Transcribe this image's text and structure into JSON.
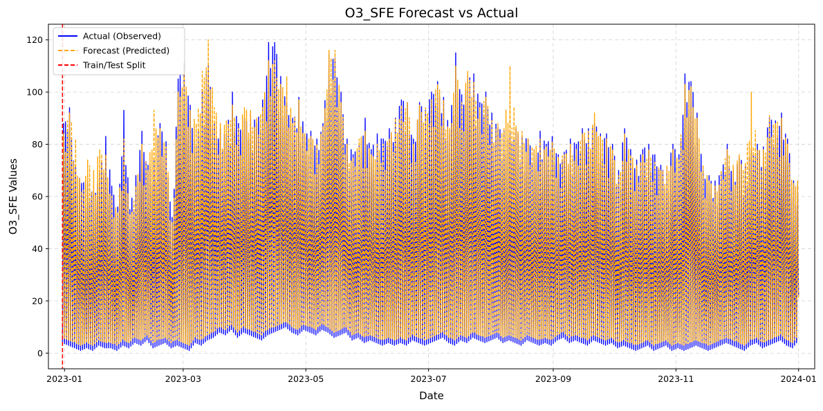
{
  "chart_data": {
    "type": "line",
    "title": "O3_SFE Forecast vs Actual",
    "xlabel": "Date",
    "ylabel": "O3_SFE Values",
    "xlim": [
      "2022-12-24",
      "2024-01-09"
    ],
    "ylim": [
      -6,
      126
    ],
    "x_ticks": [
      "2023-01",
      "2023-03",
      "2023-05",
      "2023-07",
      "2023-09",
      "2023-11",
      "2024-01"
    ],
    "y_ticks": [
      0,
      20,
      40,
      60,
      80,
      100,
      120
    ],
    "grid": true,
    "legend": {
      "placement": "top-left",
      "entries": [
        "Actual (Observed)",
        "Forecast (Predicted)",
        "Train/Test Split"
      ]
    },
    "split_date": "2022-12-31",
    "series": [
      {
        "name": "Actual (Observed)",
        "color": "#0000ff",
        "style": "solid",
        "x": [
          "2022-12-31",
          "2023-01-03",
          "2023-01-06",
          "2023-01-09",
          "2023-01-12",
          "2023-01-15",
          "2023-01-18",
          "2023-01-21",
          "2023-01-24",
          "2023-01-27",
          "2023-01-30",
          "2023-02-02",
          "2023-02-05",
          "2023-02-08",
          "2023-02-11",
          "2023-02-14",
          "2023-02-17",
          "2023-02-20",
          "2023-02-23",
          "2023-02-26",
          "2023-03-01",
          "2023-03-04",
          "2023-03-07",
          "2023-03-10",
          "2023-03-13",
          "2023-03-16",
          "2023-03-19",
          "2023-03-22",
          "2023-03-25",
          "2023-03-28",
          "2023-03-31",
          "2023-04-03",
          "2023-04-06",
          "2023-04-09",
          "2023-04-12",
          "2023-04-15",
          "2023-04-18",
          "2023-04-21",
          "2023-04-24",
          "2023-04-27",
          "2023-04-30",
          "2023-05-03",
          "2023-05-06",
          "2023-05-09",
          "2023-05-12",
          "2023-05-15",
          "2023-05-18",
          "2023-05-21",
          "2023-05-24",
          "2023-05-27",
          "2023-05-30",
          "2023-06-02",
          "2023-06-05",
          "2023-06-08",
          "2023-06-11",
          "2023-06-14",
          "2023-06-17",
          "2023-06-20",
          "2023-06-23",
          "2023-06-26",
          "2023-06-29",
          "2023-07-02",
          "2023-07-05",
          "2023-07-08",
          "2023-07-11",
          "2023-07-14",
          "2023-07-17",
          "2023-07-20",
          "2023-07-23",
          "2023-07-26",
          "2023-07-29",
          "2023-08-01",
          "2023-08-04",
          "2023-08-07",
          "2023-08-10",
          "2023-08-13",
          "2023-08-16",
          "2023-08-19",
          "2023-08-22",
          "2023-08-25",
          "2023-08-28",
          "2023-08-31",
          "2023-09-03",
          "2023-09-06",
          "2023-09-09",
          "2023-09-12",
          "2023-09-15",
          "2023-09-18",
          "2023-09-21",
          "2023-09-24",
          "2023-09-27",
          "2023-09-30",
          "2023-10-03",
          "2023-10-06",
          "2023-10-09",
          "2023-10-12",
          "2023-10-15",
          "2023-10-18",
          "2023-10-21",
          "2023-10-24",
          "2023-10-27",
          "2023-10-30",
          "2023-11-02",
          "2023-11-05",
          "2023-11-08",
          "2023-11-11",
          "2023-11-14",
          "2023-11-17",
          "2023-11-20",
          "2023-11-23",
          "2023-11-26",
          "2023-11-29",
          "2023-12-02",
          "2023-12-05",
          "2023-12-08",
          "2023-12-11",
          "2023-12-14",
          "2023-12-17",
          "2023-12-20",
          "2023-12-23",
          "2023-12-26",
          "2023-12-29",
          "2023-12-31"
        ],
        "low": [
          4,
          3,
          2,
          1,
          2,
          1,
          3,
          2,
          2,
          1,
          3,
          2,
          4,
          3,
          5,
          2,
          3,
          4,
          2,
          3,
          2,
          1,
          4,
          3,
          5,
          6,
          8,
          7,
          9,
          6,
          8,
          7,
          6,
          5,
          7,
          8,
          9,
          10,
          8,
          7,
          9,
          8,
          7,
          9,
          8,
          6,
          7,
          8,
          5,
          6,
          4,
          5,
          4,
          3,
          4,
          3,
          4,
          3,
          5,
          4,
          3,
          4,
          5,
          6,
          4,
          3,
          5,
          4,
          6,
          5,
          4,
          5,
          6,
          4,
          5,
          4,
          3,
          5,
          4,
          3,
          4,
          3,
          5,
          6,
          4,
          5,
          4,
          3,
          5,
          4,
          3,
          4,
          2,
          3,
          2,
          1,
          2,
          3,
          1,
          2,
          3,
          1,
          2,
          1,
          2,
          3,
          2,
          1,
          2,
          3,
          4,
          3,
          2,
          1,
          3,
          4,
          2,
          3,
          4,
          5,
          3,
          2,
          4
        ],
        "high": [
          88,
          94,
          72,
          65,
          66,
          62,
          70,
          83,
          64,
          56,
          93,
          55,
          68,
          85,
          72,
          74,
          88,
          81,
          52,
          105,
          111,
          95,
          80,
          101,
          110,
          88,
          86,
          84,
          100,
          88,
          90,
          92,
          88,
          97,
          119,
          119,
          106,
          96,
          90,
          98,
          84,
          85,
          82,
          88,
          115,
          113,
          100,
          82,
          76,
          80,
          90,
          78,
          84,
          82,
          86,
          90,
          97,
          96,
          82,
          96,
          93,
          100,
          104,
          98,
          85,
          115,
          99,
          106,
          107,
          96,
          100,
          92,
          86,
          85,
          84,
          86,
          83,
          82,
          78,
          85,
          80,
          83,
          76,
          77,
          82,
          80,
          86,
          86,
          88,
          84,
          84,
          80,
          70,
          86,
          78,
          74,
          78,
          80,
          76,
          72,
          70,
          80,
          76,
          107,
          104,
          92,
          70,
          68,
          66,
          69,
          80,
          70,
          75,
          72,
          78,
          80,
          79,
          90,
          89,
          92,
          82,
          66,
          65
        ],
        "final": 22
      },
      {
        "name": "Forecast (Predicted)",
        "color": "#ffa500",
        "style": "dashed",
        "x": [
          "2022-12-31",
          "2023-01-03",
          "2023-01-06",
          "2023-01-09",
          "2023-01-12",
          "2023-01-15",
          "2023-01-18",
          "2023-01-21",
          "2023-01-24",
          "2023-01-27",
          "2023-01-30",
          "2023-02-02",
          "2023-02-05",
          "2023-02-08",
          "2023-02-11",
          "2023-02-14",
          "2023-02-17",
          "2023-02-20",
          "2023-02-23",
          "2023-02-26",
          "2023-03-01",
          "2023-03-04",
          "2023-03-07",
          "2023-03-10",
          "2023-03-13",
          "2023-03-16",
          "2023-03-19",
          "2023-03-22",
          "2023-03-25",
          "2023-03-28",
          "2023-03-31",
          "2023-04-03",
          "2023-04-06",
          "2023-04-09",
          "2023-04-12",
          "2023-04-15",
          "2023-04-18",
          "2023-04-21",
          "2023-04-24",
          "2023-04-27",
          "2023-04-30",
          "2023-05-03",
          "2023-05-06",
          "2023-05-09",
          "2023-05-12",
          "2023-05-15",
          "2023-05-18",
          "2023-05-21",
          "2023-05-24",
          "2023-05-27",
          "2023-05-30",
          "2023-06-02",
          "2023-06-05",
          "2023-06-08",
          "2023-06-11",
          "2023-06-14",
          "2023-06-17",
          "2023-06-20",
          "2023-06-23",
          "2023-06-26",
          "2023-06-29",
          "2023-07-02",
          "2023-07-05",
          "2023-07-08",
          "2023-07-11",
          "2023-07-14",
          "2023-07-17",
          "2023-07-20",
          "2023-07-23",
          "2023-07-26",
          "2023-07-29",
          "2023-08-01",
          "2023-08-04",
          "2023-08-07",
          "2023-08-10",
          "2023-08-13",
          "2023-08-16",
          "2023-08-19",
          "2023-08-22",
          "2023-08-25",
          "2023-08-28",
          "2023-08-31",
          "2023-09-03",
          "2023-09-06",
          "2023-09-09",
          "2023-09-12",
          "2023-09-15",
          "2023-09-18",
          "2023-09-21",
          "2023-09-24",
          "2023-09-27",
          "2023-09-30",
          "2023-10-03",
          "2023-10-06",
          "2023-10-09",
          "2023-10-12",
          "2023-10-15",
          "2023-10-18",
          "2023-10-21",
          "2023-10-24",
          "2023-10-27",
          "2023-10-30",
          "2023-11-02",
          "2023-11-05",
          "2023-11-08",
          "2023-11-11",
          "2023-11-14",
          "2023-11-17",
          "2023-11-20",
          "2023-11-23",
          "2023-11-26",
          "2023-11-29",
          "2023-12-02",
          "2023-12-05",
          "2023-12-08",
          "2023-12-11",
          "2023-12-14",
          "2023-12-17",
          "2023-12-20",
          "2023-12-23",
          "2023-12-26",
          "2023-12-29",
          "2023-12-31"
        ],
        "low": [
          6,
          5,
          4,
          3,
          4,
          3,
          5,
          4,
          4,
          3,
          5,
          4,
          6,
          5,
          7,
          4,
          5,
          6,
          4,
          5,
          4,
          3,
          6,
          5,
          7,
          8,
          10,
          9,
          11,
          8,
          10,
          9,
          8,
          7,
          9,
          10,
          11,
          12,
          10,
          9,
          11,
          10,
          9,
          11,
          10,
          8,
          9,
          10,
          7,
          8,
          6,
          7,
          6,
          5,
          6,
          5,
          6,
          5,
          7,
          6,
          5,
          6,
          7,
          8,
          6,
          5,
          7,
          6,
          8,
          7,
          6,
          7,
          8,
          6,
          7,
          6,
          5,
          7,
          6,
          5,
          6,
          5,
          7,
          8,
          6,
          7,
          6,
          5,
          7,
          6,
          5,
          6,
          4,
          5,
          4,
          3,
          4,
          5,
          3,
          4,
          5,
          3,
          4,
          3,
          4,
          5,
          4,
          3,
          4,
          5,
          6,
          5,
          4,
          3,
          5,
          6,
          4,
          5,
          6,
          7,
          5,
          4,
          6
        ],
        "high": [
          84,
          92,
          82,
          62,
          74,
          70,
          78,
          76,
          60,
          54,
          82,
          53,
          64,
          80,
          70,
          93,
          86,
          79,
          50,
          100,
          109,
          93,
          88,
          108,
          120,
          94,
          88,
          89,
          95,
          86,
          94,
          93,
          90,
          94,
          112,
          112,
          103,
          106,
          88,
          97,
          84,
          83,
          80,
          87,
          116,
          116,
          96,
          80,
          75,
          82,
          85,
          76,
          80,
          80,
          82,
          90,
          95,
          96,
          80,
          95,
          94,
          97,
          103,
          97,
          86,
          110,
          96,
          108,
          104,
          94,
          98,
          89,
          88,
          86,
          110,
          87,
          85,
          82,
          78,
          82,
          79,
          81,
          75,
          76,
          80,
          78,
          84,
          85,
          92,
          83,
          82,
          78,
          68,
          84,
          76,
          72,
          76,
          78,
          73,
          70,
          72,
          78,
          74,
          103,
          102,
          90,
          72,
          66,
          64,
          70,
          78,
          72,
          76,
          73,
          100,
          78,
          78,
          91,
          88,
          90,
          80,
          65,
          66
        ],
        "final": 21
      }
    ]
  }
}
